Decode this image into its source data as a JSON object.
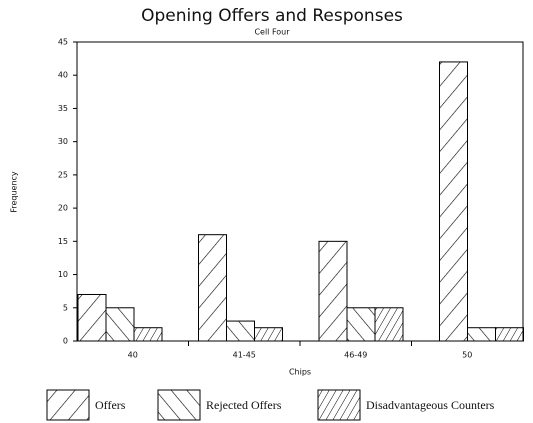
{
  "chart_data": {
    "type": "bar",
    "title": "Opening Offers and Responses",
    "subtitle": "Cell Four",
    "x_label": "Chips",
    "y_label": "Frequency",
    "categories": [
      "40",
      "41-45",
      "46-49",
      "50"
    ],
    "series": [
      {
        "name": "Offers",
        "color": "#000000",
        "pattern": "forward",
        "values": [
          7,
          16,
          15,
          42
        ]
      },
      {
        "name": "Rejected Offers",
        "color": "#000000",
        "pattern": "backward",
        "values": [
          5,
          3,
          5,
          2
        ]
      },
      {
        "name": "Disadvantageous Counters",
        "color": "#000000",
        "pattern": "forward-dense",
        "values": [
          2,
          2,
          5,
          2
        ]
      }
    ],
    "ylim": [
      0,
      45
    ],
    "yticks": [
      0,
      5,
      10,
      15,
      20,
      25,
      30,
      35,
      40,
      45
    ],
    "grid": false
  }
}
